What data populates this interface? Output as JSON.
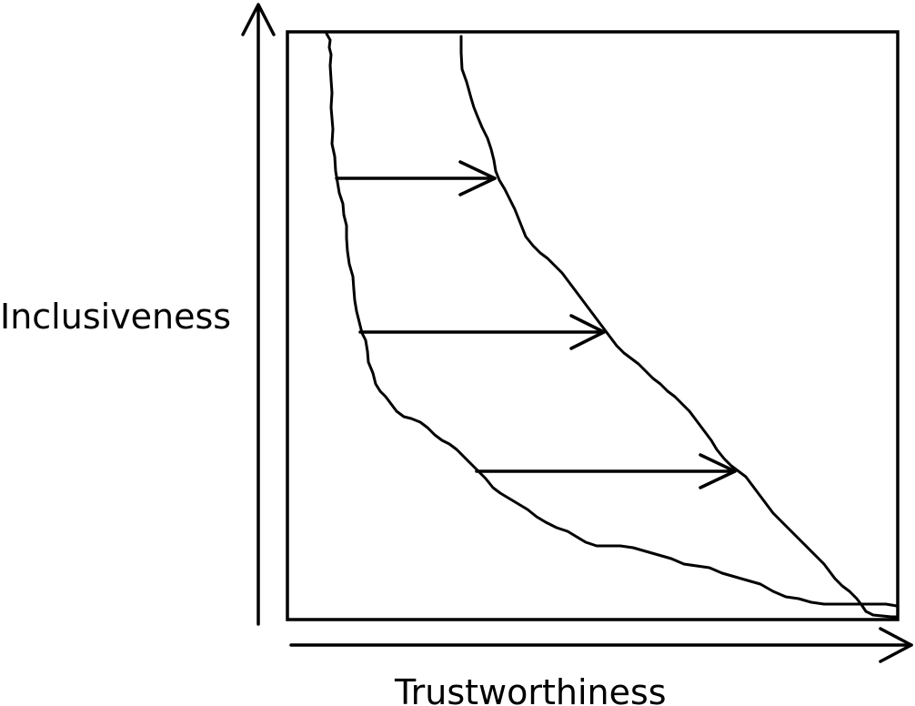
{
  "axes": {
    "y_label": "Inclusiveness",
    "x_label": "Trustworthiness"
  },
  "colors": {
    "line": "#000000",
    "background": "#ffffff"
  },
  "curves": [
    {
      "name": "lower-curve",
      "shape": "hand-drawn frontier"
    },
    {
      "name": "upper-curve",
      "shape": "hand-drawn frontier"
    }
  ],
  "shift_arrows": {
    "count": 3,
    "direction": "right"
  }
}
